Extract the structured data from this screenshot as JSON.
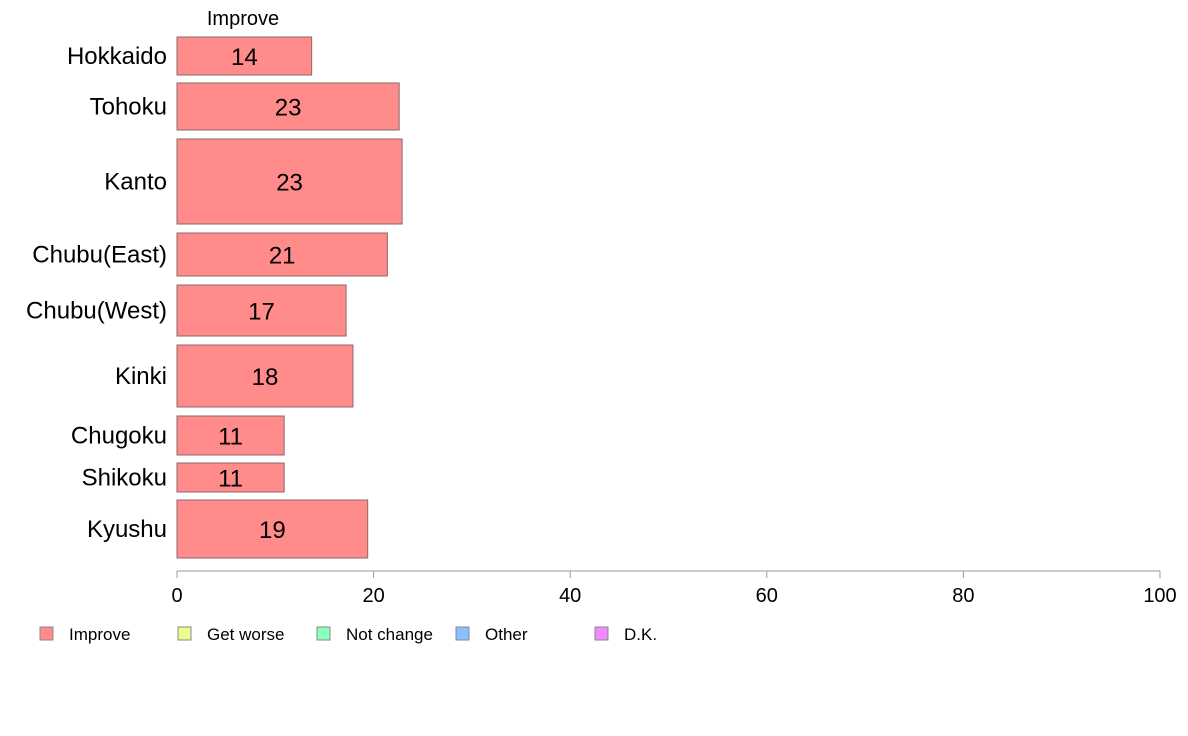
{
  "chart_data": {
    "type": "bar",
    "orientation": "horizontal",
    "stacked": true,
    "header_label": "Improve",
    "categories": [
      "Hokkaido",
      "Tohoku",
      "Kanto",
      "Chubu(East)",
      "Chubu(West)",
      "Kinki",
      "Chugoku",
      "Shikoku",
      "Kyushu"
    ],
    "series": [
      {
        "name": "Improve",
        "color": "#ff8b8b",
        "values": [
          13.7,
          22.6,
          22.9,
          21.4,
          17.2,
          17.9,
          10.9,
          10.9,
          19.4
        ],
        "labels": [
          "14",
          "23",
          "23",
          "21",
          "17",
          "18",
          "11",
          "11",
          "19"
        ]
      }
    ],
    "xlim": [
      0,
      100
    ],
    "x_ticks": [
      "0",
      "20",
      "40",
      "60",
      "80",
      "100"
    ],
    "grid": false,
    "legend": {
      "placement": "bottom",
      "items": [
        {
          "name": "Improve",
          "color": "#ff8b8b"
        },
        {
          "name": "Get worse",
          "color": "#eaff8b"
        },
        {
          "name": "Not change",
          "color": "#8bffbf"
        },
        {
          "name": "Other",
          "color": "#8bbfff"
        },
        {
          "name": "D.K.",
          "color": "#f08bff"
        }
      ]
    }
  }
}
